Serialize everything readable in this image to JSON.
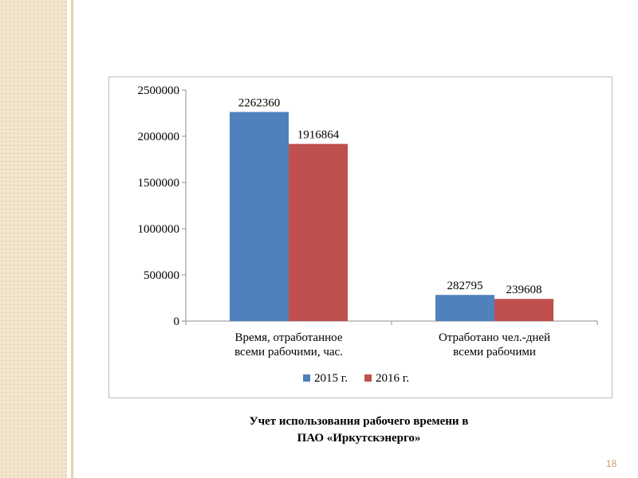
{
  "caption": {
    "line1": "Учет использования рабочего времени в",
    "line2": "ПАО «Иркутскэнерго»"
  },
  "page_number": "18",
  "chart_data": {
    "type": "bar",
    "categories": [
      [
        "Время, отработанное",
        "всеми рабочими, час."
      ],
      [
        "Отработано чел.-дней",
        "всеми рабочими"
      ]
    ],
    "series": [
      {
        "name": "2015 г.",
        "color": "#4f81bd",
        "values": [
          2262360,
          282795
        ]
      },
      {
        "name": "2016 г.",
        "color": "#c0504d",
        "values": [
          1916864,
          239608
        ]
      }
    ],
    "ylim": [
      0,
      2500000
    ],
    "yticks": [
      "0",
      "500000",
      "1000000",
      "1500000",
      "2000000",
      "2500000"
    ],
    "grid": false,
    "legend": "bottom"
  }
}
